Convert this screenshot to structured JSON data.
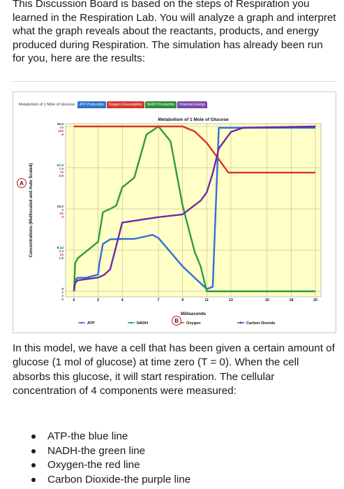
{
  "intro_text": "This Discussion Board is based on the steps of Respiration you learned in the Respiration Lab. You will analyze a graph and interpret what the graph reveals about the reactants, products, and energy produced during Respiration. The simulation has already been run for you, here are the results:",
  "figure": {
    "window_title": "Metabolism of 1 Mole of Glucose",
    "tabs": [
      "ATP Production",
      "Oxygen Consumption",
      "NADH Production",
      "Potential Energy"
    ],
    "marker_a": "A",
    "marker_b": "B"
  },
  "body_text": "In this model, we have a cell that has been given a certain amount of glucose (1 mol of glucose) at time zero (T = 0). When the cell absorbs this glucose, it will start respiration. The cellular concentration of 4 components were measured:",
  "bullets": [
    "ATP-the blue line",
    "NADH-the green line",
    "Oxygen-the red line",
    "Carbon Dioxide-the purple line"
  ],
  "colors": {
    "atp": "#2f6fd6",
    "nadh": "#2e9c3b",
    "oxygen": "#d9342b",
    "co2": "#6b2ba8",
    "plot_bg": "#ffffc6"
  },
  "chart_data": {
    "type": "line",
    "title": "Metabolism of 1 Mole of Glucose",
    "xlabel": "Milliseconds",
    "ylabel": "Concentrations (Multiscaled and Auto Scaled)",
    "x_ticks": [
      "0",
      "2",
      "4",
      "7",
      "9",
      "11",
      "13",
      "16",
      "18",
      "20"
    ],
    "xlim": [
      0,
      20
    ],
    "y_tick_groups": [
      {
        "labels": [
          "36.5",
          "10",
          "100",
          "6"
        ]
      },
      {
        "labels": [
          "27.3",
          "7.5",
          "75",
          "4.5"
        ]
      },
      {
        "labels": [
          "18.2",
          "5",
          "50",
          "3"
        ]
      },
      {
        "labels": [
          "9.12",
          "2.5",
          "25",
          "1.5"
        ]
      },
      {
        "labels": [
          "0",
          "0",
          "0",
          "0"
        ]
      }
    ],
    "grid": true,
    "legend_position": "bottom",
    "series": [
      {
        "name": "ATP",
        "key": "atp",
        "x": [
          0,
          0.1,
          0.3,
          1.0,
          2.0,
          2.1,
          2.4,
          3.0,
          4.0,
          5.0,
          6.5,
          7.0,
          9.0,
          10.0,
          11.0,
          11.5,
          12.0,
          20.0
        ],
        "y": [
          0,
          2.5,
          3.0,
          3.0,
          3.7,
          6.0,
          10.5,
          11.5,
          11.6,
          11.6,
          12.5,
          11.8,
          5.5,
          3.0,
          0.5,
          1.0,
          36.2,
          36.2
        ]
      },
      {
        "name": "NADH",
        "key": "nadh",
        "x": [
          0,
          0.1,
          0.3,
          2.0,
          2.4,
          3.0,
          3.5,
          4.0,
          5.0,
          6.0,
          7.0,
          8.0,
          9.0,
          10.0,
          10.5,
          11.0,
          20.0
        ],
        "y": [
          0,
          1.7,
          2.0,
          3.0,
          4.8,
          5.0,
          5.2,
          6.3,
          6.9,
          9.5,
          10.0,
          9.1,
          5.2,
          2.4,
          1.5,
          0,
          0
        ]
      },
      {
        "name": "Oxygen",
        "key": "oxygen",
        "x": [
          0,
          9.0,
          10.0,
          11.0,
          12.0,
          12.8,
          20.0
        ],
        "y": [
          100,
          100,
          97,
          90,
          80,
          72,
          72
        ]
      },
      {
        "name": "Carbon Dioxide",
        "key": "co2",
        "x": [
          0,
          0.1,
          0.3,
          2.0,
          2.5,
          3.0,
          4.0,
          5.5,
          7.0,
          9.0,
          10.5,
          11.0,
          11.5,
          12.0,
          13.0,
          14.0,
          20.0
        ],
        "y": [
          0,
          0.3,
          0.4,
          0.5,
          0.6,
          0.8,
          2.5,
          2.6,
          2.7,
          2.8,
          3.3,
          3.6,
          4.3,
          5.2,
          5.8,
          5.95,
          6
        ]
      }
    ]
  }
}
